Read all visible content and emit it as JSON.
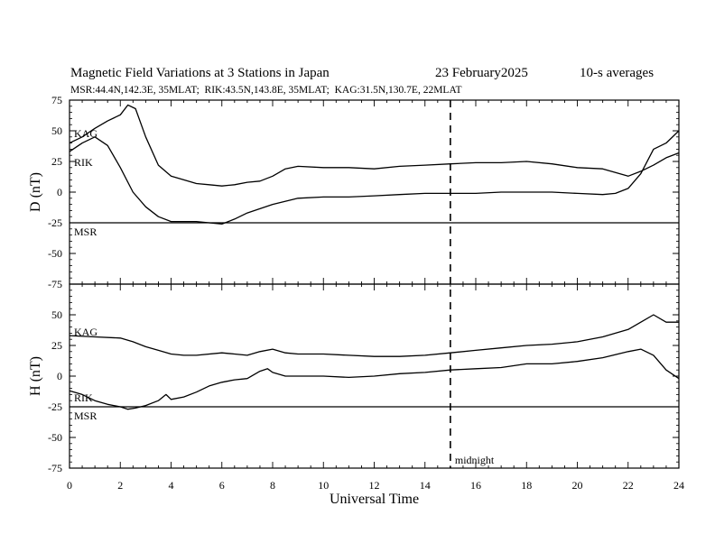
{
  "header": {
    "title": "Magnetic Field Variations at 3 Stations in Japan",
    "date": "23 February2025",
    "averaging": "10-s averages",
    "stations": "MSR:44.4N,142.3E, 35MLAT;  RIK:43.5N,143.8E, 35MLAT;  KAG:31.5N,130.7E, 22MLAT"
  },
  "chart_data": [
    {
      "type": "line",
      "panel": "D",
      "ylabel": "D (nT)",
      "ylim": [
        -75,
        75
      ],
      "yticks": [
        75,
        50,
        25,
        0,
        -25,
        -50,
        -75
      ],
      "xlim": [
        0,
        24
      ],
      "series": [
        {
          "name": "KAG",
          "x": [
            0,
            0.5,
            1,
            1.5,
            2,
            2.3,
            2.6,
            3,
            3.5,
            4,
            4.5,
            5,
            5.5,
            6,
            6.5,
            7,
            7.5,
            8,
            8.5,
            9,
            10,
            11,
            12,
            13,
            14,
            15,
            16,
            17,
            18,
            19,
            20,
            21,
            22,
            22.5,
            23,
            23.5,
            24
          ],
          "y": [
            40,
            45,
            52,
            58,
            63,
            71,
            68,
            45,
            22,
            13,
            10,
            7,
            6,
            5,
            6,
            8,
            9,
            13,
            19,
            21,
            20,
            20,
            19,
            21,
            22,
            23,
            24,
            24,
            25,
            23,
            20,
            19,
            13,
            17,
            22,
            28,
            32
          ]
        },
        {
          "name": "RIK",
          "x": [
            0,
            0.5,
            1,
            1.5,
            2,
            2.5,
            3,
            3.5,
            4,
            4.5,
            5,
            5.5,
            6,
            6.5,
            7,
            8,
            9,
            10,
            11,
            12,
            13,
            14,
            15,
            16,
            17,
            18,
            19,
            20,
            21,
            21.5,
            22,
            22.5,
            23,
            23.5,
            24
          ],
          "y": [
            33,
            40,
            45,
            38,
            20,
            0,
            -12,
            -20,
            -24,
            -24,
            -24,
            -25,
            -26,
            -22,
            -17,
            -10,
            -5,
            -4,
            -4,
            -3,
            -2,
            -1,
            -1,
            -1,
            0,
            0,
            0,
            -1,
            -2,
            -1,
            3,
            15,
            35,
            40,
            50
          ]
        },
        {
          "name": "MSR",
          "x": [
            0,
            24
          ],
          "y": [
            -25,
            -25
          ]
        }
      ],
      "labels": [
        "KAG",
        "RIK",
        "MSR"
      ]
    },
    {
      "type": "line",
      "panel": "H",
      "ylabel": "H (nT)",
      "ylim": [
        -75,
        75
      ],
      "yticks": [
        75,
        50,
        25,
        0,
        -25,
        -50,
        -75
      ],
      "xlim": [
        0,
        24
      ],
      "xlabel": "Universal Time",
      "xticks": [
        0,
        2,
        4,
        6,
        8,
        10,
        12,
        14,
        16,
        18,
        20,
        22,
        24
      ],
      "series": [
        {
          "name": "KAG",
          "x": [
            0,
            1,
            2,
            2.5,
            3,
            3.5,
            4,
            4.5,
            5,
            6,
            6.5,
            7,
            7.5,
            8,
            8.5,
            9,
            10,
            11,
            12,
            13,
            14,
            15,
            16,
            17,
            18,
            19,
            20,
            21,
            22,
            22.5,
            23,
            23.5,
            24
          ],
          "y": [
            33,
            32,
            31,
            28,
            24,
            21,
            18,
            17,
            17,
            19,
            18,
            17,
            20,
            22,
            19,
            18,
            18,
            17,
            16,
            16,
            17,
            19,
            21,
            23,
            25,
            26,
            28,
            32,
            38,
            44,
            50,
            44,
            44
          ]
        },
        {
          "name": "RIK",
          "x": [
            0,
            0.5,
            1,
            1.5,
            2,
            2.3,
            2.6,
            3,
            3.5,
            3.8,
            4,
            4.5,
            5,
            5.5,
            6,
            6.5,
            7,
            7.5,
            7.8,
            8,
            8.5,
            9,
            10,
            11,
            12,
            13,
            14,
            15,
            16,
            17,
            18,
            19,
            20,
            21,
            22,
            22.5,
            23,
            23.5,
            24
          ],
          "y": [
            -12,
            -15,
            -20,
            -23,
            -25,
            -27,
            -26,
            -24,
            -20,
            -15,
            -19,
            -17,
            -13,
            -8,
            -5,
            -3,
            -2,
            4,
            6,
            3,
            0,
            0,
            0,
            -1,
            0,
            2,
            3,
            5,
            6,
            7,
            10,
            10,
            12,
            15,
            20,
            22,
            17,
            5,
            -2
          ]
        },
        {
          "name": "MSR",
          "x": [
            0,
            24
          ],
          "y": [
            -25,
            -25
          ]
        }
      ],
      "labels": [
        "KAG",
        "RIK",
        "MSR"
      ]
    }
  ],
  "annotations": {
    "midnight_label": "midnight",
    "midnight_ut": 15
  }
}
